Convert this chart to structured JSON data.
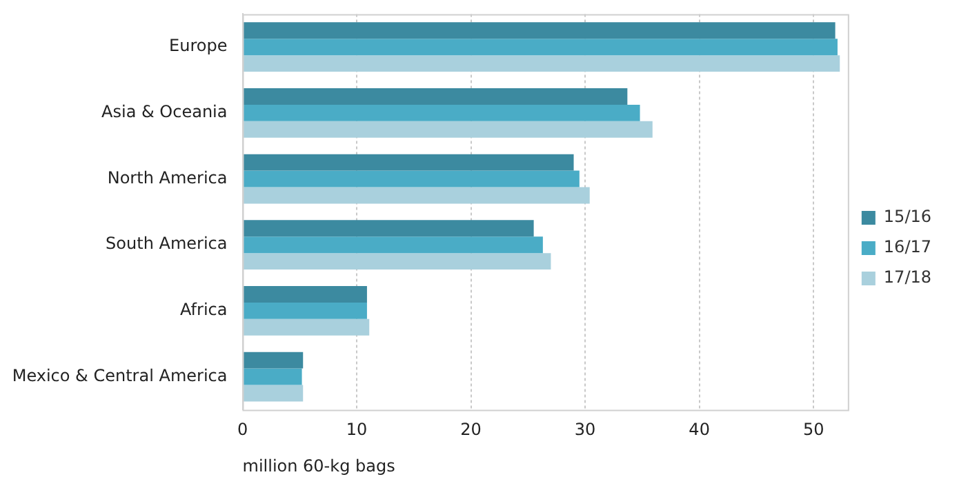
{
  "chart_data": {
    "type": "bar",
    "orientation": "horizontal",
    "xlabel": "million 60-kg bags",
    "categories": [
      "Europe",
      "Asia & Oceania",
      "North America",
      "South America",
      "Africa",
      "Mexico & Central America"
    ],
    "series": [
      {
        "name": "15/16",
        "color": "#3c8aa0",
        "values": [
          51.9,
          33.7,
          29.0,
          25.5,
          10.9,
          5.3
        ]
      },
      {
        "name": "16/17",
        "color": "#4aacc6",
        "values": [
          52.1,
          34.8,
          29.5,
          26.3,
          10.9,
          5.2
        ]
      },
      {
        "name": "17/18",
        "color": "#a9d0dd",
        "values": [
          52.3,
          35.9,
          30.4,
          27.0,
          11.1,
          5.3
        ]
      }
    ],
    "xlim": [
      0,
      53
    ],
    "xticks": [
      0,
      10,
      20,
      30,
      40,
      50
    ],
    "grid": "x",
    "legend": "right"
  }
}
